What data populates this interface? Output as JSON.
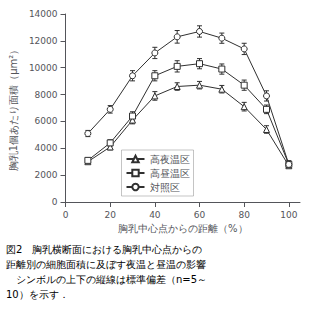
{
  "chart_data": {
    "type": "line",
    "x": [
      10,
      20,
      30,
      40,
      50,
      60,
      70,
      80,
      90,
      100
    ],
    "series": [
      {
        "name": "高夜温区",
        "color": "#303030",
        "marker": "triangle",
        "values": [
          3000,
          4100,
          6100,
          7900,
          8600,
          8700,
          8400,
          7100,
          5400,
          2700
        ],
        "errors": [
          180,
          220,
          280,
          320,
          280,
          280,
          280,
          320,
          280,
          180
        ]
      },
      {
        "name": "高昼温区",
        "color": "#303030",
        "marker": "square",
        "values": [
          3100,
          4400,
          6400,
          9400,
          10100,
          10300,
          9900,
          8700,
          6900,
          2800
        ],
        "errors": [
          180,
          230,
          320,
          380,
          420,
          380,
          380,
          380,
          320,
          230
        ]
      },
      {
        "name": "対照区",
        "color": "#303030",
        "marker": "circle",
        "values": [
          5100,
          6900,
          9400,
          11100,
          12300,
          12700,
          12200,
          11400,
          7900,
          2800
        ],
        "errors": [
          230,
          280,
          380,
          420,
          470,
          420,
          380,
          420,
          380,
          280
        ]
      }
    ],
    "x_label": "胸乳中心点からの距離（%）",
    "y_label": "胸乳1個あたり面積（μm²）",
    "annotations": [
      "図2　胸乳横断面における胸乳中心点からの",
      "距離別の細胞面積に及ぼす夜温と昼温の影響",
      "　シンボルの上下の縦線は標準偏差（n=5～",
      "10）を示す．"
    ],
    "xlim": [
      0,
      105
    ],
    "xticks": [
      0,
      20,
      40,
      60,
      80,
      100
    ],
    "ylim": [
      0,
      14000
    ],
    "yticks": [
      0,
      2000,
      4000,
      6000,
      8000,
      10000,
      12000,
      14000
    ],
    "grid": false,
    "legend": "lower center"
  }
}
